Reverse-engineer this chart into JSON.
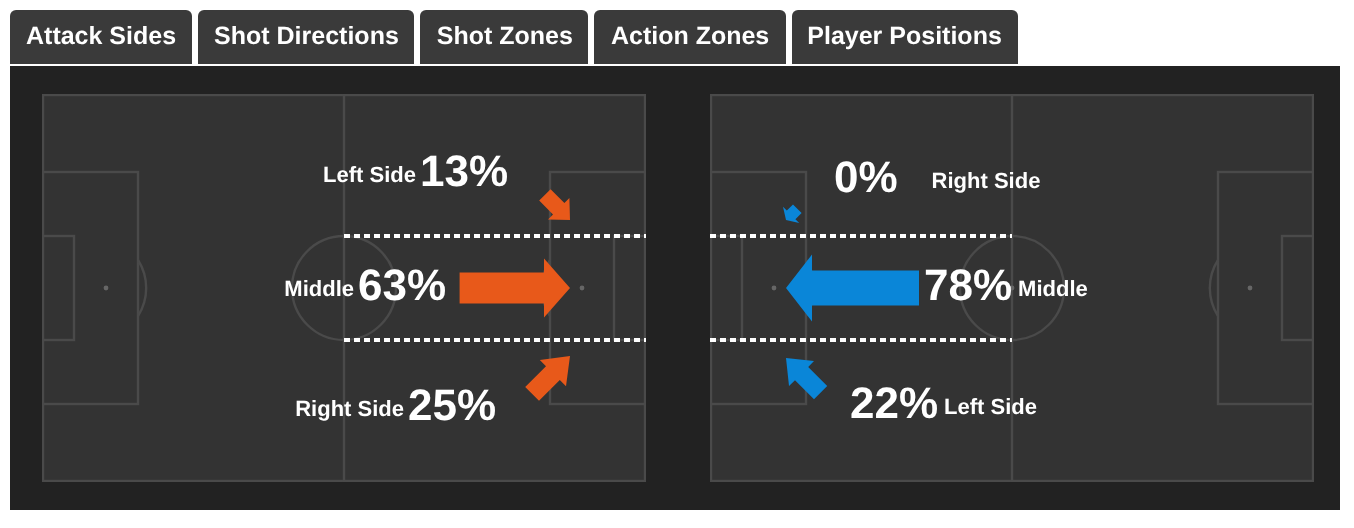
{
  "chart_data": [
    {
      "type": "other",
      "annotations": [
        "Attack Sides",
        "Shot Directions",
        "Shot Zones",
        "Action Zones",
        "Player Positions"
      ]
    },
    {
      "type": "other",
      "categories": [
        "Left Side",
        "Middle",
        "Right Side"
      ],
      "values": [
        13,
        63,
        25
      ],
      "value_labels": [
        "13%",
        "63%",
        "25%"
      ]
    },
    {
      "type": "other",
      "categories": [
        "Right Side",
        "Middle",
        "Left Side"
      ],
      "values": [
        0,
        78,
        22
      ],
      "value_labels": [
        "0%",
        "78%",
        "22%"
      ]
    }
  ]
}
